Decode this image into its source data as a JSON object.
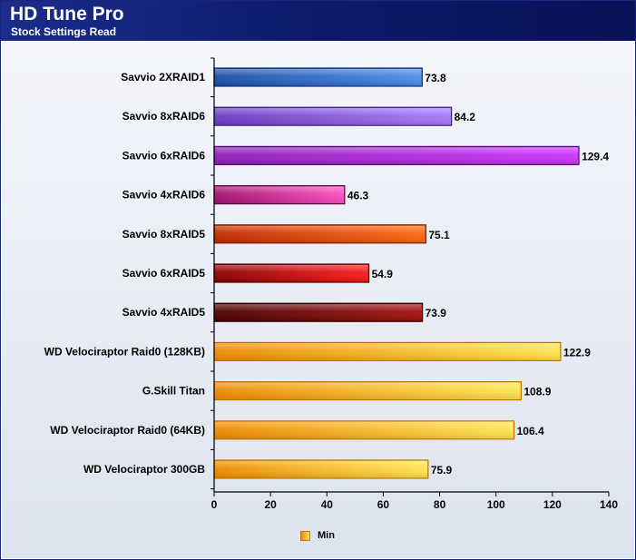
{
  "header": {
    "title": "HD Tune Pro",
    "subtitle": "Stock Settings Read"
  },
  "legend": {
    "label": "Min"
  },
  "chart_data": {
    "type": "bar",
    "orientation": "horizontal",
    "title": "HD Tune Pro",
    "subtitle": "Stock Settings Read",
    "xlim": [
      0,
      140
    ],
    "x_ticks": [
      0,
      20,
      40,
      60,
      80,
      100,
      120,
      140
    ],
    "grid": false,
    "legend_position": "bottom",
    "categories": [
      "Savvio 2XRAID1",
      "Savvio 8xRAID6",
      "Savvio 6xRAID6",
      "Savvio 4xRAID6",
      "Savvio 8xRAID5",
      "Savvio 6xRAID5",
      "Savvio 4xRAID5",
      "WD Velociraptor Raid0 (128KB)",
      "G.Skill Titan",
      "WD Velociraptor Raid0 (64KB)",
      "WD Velociraptor 300GB"
    ],
    "series": [
      {
        "name": "Min",
        "values": [
          73.8,
          84.2,
          129.4,
          46.3,
          75.1,
          54.9,
          73.9,
          122.9,
          108.9,
          106.4,
          75.9
        ],
        "value_labels": [
          "73.8",
          "84.2",
          "129.4",
          "46.3",
          "75.1",
          "54.9",
          "73.9",
          "122.9",
          "108.9",
          "106.4",
          "75.9"
        ]
      }
    ],
    "bar_colors": [
      [
        "#1a4ea8",
        "#4c8ee8"
      ],
      [
        "#6a3cc2",
        "#a77cff"
      ],
      [
        "#8d1fb8",
        "#d033ff"
      ],
      [
        "#a0106e",
        "#ff4fc4"
      ],
      [
        "#c22a00",
        "#ff6a10"
      ],
      [
        "#8a0000",
        "#ff1a1a"
      ],
      [
        "#4a0000",
        "#a31212"
      ],
      [
        "#ef8a00",
        "#ffe650"
      ],
      [
        "#ef8a00",
        "#ffe650"
      ],
      [
        "#ef8a00",
        "#ffe650"
      ],
      [
        "#ef8a00",
        "#ffe650"
      ]
    ],
    "bar_borders": [
      "#0b2e70",
      "#3d1f80",
      "#560a73",
      "#5e0842",
      "#7a1a00",
      "#550000",
      "#2a0000",
      "#c27000",
      "#c27000",
      "#c27000",
      "#c27000"
    ]
  }
}
